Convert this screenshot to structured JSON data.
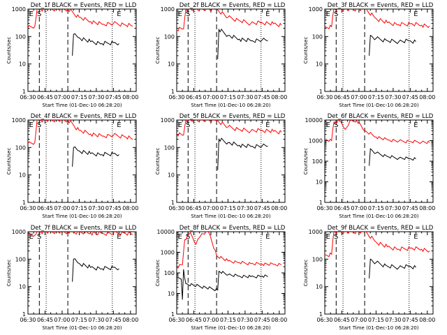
{
  "chart_data": [
    {
      "type": "line",
      "title": "Det_1f BLACK = Events, RED = LLD",
      "xlabel": "Start Time (01-Dec-10 06:28:20)",
      "ylabel": "Counts/sec",
      "x_tick_labels": [
        "06:30",
        "06:45",
        "07:00",
        "07:15",
        "07:30",
        "07:45",
        "08:00"
      ],
      "y_tick_labels": [
        "1",
        "10",
        "100",
        "1000"
      ],
      "ylim": [
        1,
        1000
      ],
      "y_scale": "log",
      "markers": [
        "E",
        "S",
        "E"
      ],
      "series": [
        {
          "color": "#ff0000",
          "points": [
            [
              "06:30",
              220
            ],
            [
              "06:36",
              230
            ],
            [
              "06:38",
              1000
            ],
            [
              "07:05",
              1000
            ],
            [
              "07:15",
              500
            ],
            [
              "07:25",
              350
            ],
            [
              "07:35",
              280
            ],
            [
              "07:45",
              300
            ],
            [
              "07:55",
              270
            ],
            [
              "08:02",
              240
            ]
          ]
        },
        {
          "color": "#000000",
          "points": [
            [
              "07:09",
              20
            ],
            [
              "07:10",
              120
            ],
            [
              "07:15",
              90
            ],
            [
              "07:25",
              65
            ],
            [
              "07:35",
              55
            ],
            [
              "07:45",
              60
            ],
            [
              "07:50",
              55
            ]
          ]
        }
      ]
    },
    {
      "type": "line",
      "title": "Det_2f BLACK = Events, RED = LLD",
      "xlabel": "Start Time (01-Dec-10 06:28:20)",
      "ylabel": "Counts/sec",
      "x_tick_labels": [
        "06:30",
        "06:45",
        "07:00",
        "07:15",
        "07:30",
        "07:45",
        "08:00"
      ],
      "y_tick_labels": [
        "1",
        "10",
        "100",
        "1000"
      ],
      "ylim": [
        1,
        1000
      ],
      "y_scale": "log",
      "markers": [
        "E",
        "S",
        "E"
      ],
      "series": [
        {
          "color": "#ff0000",
          "points": [
            [
              "06:30",
              180
            ],
            [
              "06:36",
              190
            ],
            [
              "06:38",
              1000
            ],
            [
              "07:05",
              1000
            ],
            [
              "07:15",
              500
            ],
            [
              "07:25",
              380
            ],
            [
              "07:35",
              300
            ],
            [
              "07:45",
              320
            ],
            [
              "07:55",
              290
            ],
            [
              "08:02",
              260
            ]
          ]
        },
        {
          "color": "#000000",
          "points": [
            [
              "07:06",
              15
            ],
            [
              "07:07",
              180
            ],
            [
              "07:15",
              110
            ],
            [
              "07:25",
              80
            ],
            [
              "07:35",
              70
            ],
            [
              "07:45",
              75
            ],
            [
              "07:50",
              70
            ]
          ]
        }
      ]
    },
    {
      "type": "line",
      "title": "Det_3f BLACK = Events, RED = LLD",
      "xlabel": "Start Time (01-Dec-10 06:28:20)",
      "ylabel": "Counts/sec",
      "x_tick_labels": [
        "06:30",
        "06:45",
        "07:00",
        "07:15",
        "07:30",
        "07:45",
        "08:00"
      ],
      "y_tick_labels": [
        "1",
        "10",
        "100",
        "1000"
      ],
      "ylim": [
        1,
        1000
      ],
      "y_scale": "log",
      "markers": [
        "E",
        "S",
        "E"
      ],
      "series": [
        {
          "color": "#ff0000",
          "points": [
            [
              "06:30",
              220
            ],
            [
              "06:36",
              230
            ],
            [
              "06:38",
              1000
            ],
            [
              "07:05",
              1000
            ],
            [
              "07:15",
              450
            ],
            [
              "07:25",
              320
            ],
            [
              "07:35",
              270
            ],
            [
              "07:45",
              290
            ],
            [
              "07:55",
              260
            ],
            [
              "08:02",
              240
            ]
          ]
        },
        {
          "color": "#000000",
          "points": [
            [
              "07:09",
              20
            ],
            [
              "07:10",
              110
            ],
            [
              "07:15",
              85
            ],
            [
              "07:25",
              70
            ],
            [
              "07:35",
              65
            ],
            [
              "07:45",
              70
            ],
            [
              "07:50",
              65
            ]
          ]
        }
      ]
    },
    {
      "type": "line",
      "title": "Det_4f BLACK = Events, RED = LLD",
      "xlabel": "Start Time (01-Dec-10 06:28:20)",
      "ylabel": "Counts/sec",
      "x_tick_labels": [
        "06:30",
        "06:45",
        "07:00",
        "07:15",
        "07:30",
        "07:45",
        "08:00"
      ],
      "y_tick_labels": [
        "1",
        "10",
        "100",
        "1000"
      ],
      "ylim": [
        1,
        1000
      ],
      "y_scale": "log",
      "markers": [
        "E",
        "S",
        "E"
      ],
      "series": [
        {
          "color": "#ff0000",
          "points": [
            [
              "06:30",
              140
            ],
            [
              "06:36",
              150
            ],
            [
              "06:38",
              1000
            ],
            [
              "07:05",
              1000
            ],
            [
              "07:15",
              420
            ],
            [
              "07:25",
              310
            ],
            [
              "07:35",
              260
            ],
            [
              "07:45",
              280
            ],
            [
              "07:55",
              250
            ],
            [
              "08:02",
              200
            ]
          ]
        },
        {
          "color": "#000000",
          "points": [
            [
              "07:09",
              20
            ],
            [
              "07:10",
              100
            ],
            [
              "07:15",
              75
            ],
            [
              "07:25",
              60
            ],
            [
              "07:35",
              55
            ],
            [
              "07:45",
              60
            ],
            [
              "07:50",
              55
            ]
          ]
        }
      ]
    },
    {
      "type": "line",
      "title": "Det_5f BLACK = Events, RED = LLD",
      "xlabel": "Start Time (01-Dec-10 06:28:20)",
      "ylabel": "Counts/sec",
      "x_tick_labels": [
        "06:30",
        "06:45",
        "07:00",
        "07:15",
        "07:30",
        "07:45",
        "08:00"
      ],
      "y_tick_labels": [
        "1",
        "10",
        "100",
        "1000"
      ],
      "ylim": [
        1,
        1000
      ],
      "y_scale": "log",
      "markers": [
        "E",
        "S",
        "E"
      ],
      "series": [
        {
          "color": "#ff0000",
          "points": [
            [
              "06:30",
              300
            ],
            [
              "06:36",
              280
            ],
            [
              "06:38",
              1000
            ],
            [
              "07:05",
              1000
            ],
            [
              "07:15",
              560
            ],
            [
              "07:25",
              450
            ],
            [
              "07:35",
              400
            ],
            [
              "07:45",
              420
            ],
            [
              "07:55",
              390
            ],
            [
              "08:02",
              360
            ]
          ]
        },
        {
          "color": "#000000",
          "points": [
            [
              "07:06",
              15
            ],
            [
              "07:07",
              200
            ],
            [
              "07:15",
              150
            ],
            [
              "07:25",
              120
            ],
            [
              "07:35",
              110
            ],
            [
              "07:45",
              115
            ],
            [
              "07:50",
              110
            ]
          ]
        }
      ]
    },
    {
      "type": "line",
      "title": "Det_6f BLACK = Events, RED = LLD",
      "xlabel": "Start Time (01-Dec-10 06:28:20)",
      "ylabel": "Counts/sec",
      "x_tick_labels": [
        "06:30",
        "06:45",
        "07:00",
        "07:15",
        "07:30",
        "07:45",
        "08:00"
      ],
      "y_tick_labels": [
        "1",
        "10",
        "100",
        "1000",
        "10000"
      ],
      "ylim": [
        1,
        10000
      ],
      "y_scale": "log",
      "markers": [
        "E",
        "S",
        "E"
      ],
      "series": [
        {
          "color": "#ff0000",
          "points": [
            [
              "06:30",
              1200
            ],
            [
              "06:36",
              1000
            ],
            [
              "06:38",
              8000
            ],
            [
              "06:43",
              9000
            ],
            [
              "06:48",
              3500
            ],
            [
              "06:52",
              9000
            ],
            [
              "06:58",
              9500
            ],
            [
              "07:05",
              3000
            ],
            [
              "07:15",
              1500
            ],
            [
              "07:25",
              1100
            ],
            [
              "07:35",
              950
            ],
            [
              "07:45",
              900
            ],
            [
              "07:55",
              850
            ],
            [
              "08:02",
              800
            ]
          ]
        },
        {
          "color": "#000000",
          "points": [
            [
              "07:09",
              60
            ],
            [
              "07:10",
              400
            ],
            [
              "07:15",
              250
            ],
            [
              "07:25",
              170
            ],
            [
              "07:35",
              140
            ],
            [
              "07:45",
              135
            ],
            [
              "07:50",
              130
            ]
          ]
        }
      ]
    },
    {
      "type": "line",
      "title": "Det_7f BLACK = Events, RED = LLD",
      "xlabel": "Start Time (01-Dec-10 06:28:20)",
      "ylabel": "Counts/sec",
      "x_tick_labels": [
        "06:30",
        "06:45",
        "07:00",
        "07:15",
        "07:30",
        "07:45",
        "08:00"
      ],
      "y_tick_labels": [
        "1",
        "10",
        "100",
        "1000"
      ],
      "ylim": [
        1,
        1000
      ],
      "y_scale": "log",
      "markers": [
        "E",
        "S",
        "E"
      ],
      "series": [
        {
          "color": "#ff0000",
          "points": [
            [
              "06:30",
              800
            ],
            [
              "06:36",
              750
            ],
            [
              "06:38",
              1000
            ],
            [
              "07:05",
              1000
            ],
            [
              "07:15",
              950
            ],
            [
              "07:25",
              900
            ],
            [
              "07:35",
              850
            ],
            [
              "07:45",
              900
            ],
            [
              "07:55",
              880
            ],
            [
              "08:02",
              800
            ]
          ]
        },
        {
          "color": "#000000",
          "points": [
            [
              "07:09",
              15
            ],
            [
              "07:10",
              100
            ],
            [
              "07:15",
              70
            ],
            [
              "07:25",
              50
            ],
            [
              "07:35",
              45
            ],
            [
              "07:45",
              50
            ],
            [
              "07:50",
              45
            ]
          ]
        }
      ]
    },
    {
      "type": "line",
      "title": "Det_8f BLACK = Events, RED = LLD",
      "xlabel": "Start Time (01-Dec-10 06:28:20)",
      "ylabel": "Counts/sec",
      "x_tick_labels": [
        "06:30",
        "06:45",
        "07:00",
        "07:15",
        "07:30",
        "07:45",
        "08:00"
      ],
      "y_tick_labels": [
        "1",
        "10",
        "100",
        "1000",
        "10000"
      ],
      "ylim": [
        1,
        10000
      ],
      "y_scale": "log",
      "markers": [
        "E",
        "S",
        "E"
      ],
      "series": [
        {
          "color": "#ff0000",
          "points": [
            [
              "06:30",
              180
            ],
            [
              "06:35",
              250
            ],
            [
              "06:37",
              4000
            ],
            [
              "06:42",
              9000
            ],
            [
              "06:47",
              2500
            ],
            [
              "06:52",
              8000
            ],
            [
              "06:58",
              9500
            ],
            [
              "07:05",
              700
            ],
            [
              "07:15",
              380
            ],
            [
              "07:25",
              320
            ],
            [
              "07:35",
              280
            ],
            [
              "07:45",
              270
            ],
            [
              "07:55",
              260
            ],
            [
              "08:02",
              250
            ]
          ]
        },
        {
          "color": "#000000",
          "points": [
            [
              "06:30",
              60
            ],
            [
              "06:34",
              50
            ],
            [
              "06:35",
              5
            ],
            [
              "06:36",
              150
            ],
            [
              "06:38",
              30
            ],
            [
              "07:06",
              15
            ],
            [
              "07:07",
              120
            ],
            [
              "07:15",
              80
            ],
            [
              "07:25",
              70
            ],
            [
              "07:35",
              65
            ],
            [
              "07:45",
              70
            ],
            [
              "07:50",
              65
            ]
          ]
        }
      ]
    },
    {
      "type": "line",
      "title": "Det_9f BLACK = Events, RED = LLD",
      "xlabel": "Start Time (01-Dec-10 06:28:20)",
      "ylabel": "Counts/sec",
      "x_tick_labels": [
        "06:30",
        "06:45",
        "07:00",
        "07:15",
        "07:30",
        "07:45",
        "08:00"
      ],
      "y_tick_labels": [
        "1",
        "10",
        "100",
        "1000"
      ],
      "ylim": [
        1,
        1000
      ],
      "y_scale": "log",
      "markers": [
        "E",
        "S",
        "E"
      ],
      "series": [
        {
          "color": "#ff0000",
          "points": [
            [
              "06:30",
              140
            ],
            [
              "06:36",
              150
            ],
            [
              "06:38",
              1000
            ],
            [
              "07:05",
              1000
            ],
            [
              "07:15",
              420
            ],
            [
              "07:25",
              280
            ],
            [
              "07:35",
              230
            ],
            [
              "07:45",
              250
            ],
            [
              "07:55",
              230
            ],
            [
              "08:02",
              200
            ]
          ]
        },
        {
          "color": "#000000",
          "points": [
            [
              "07:09",
              20
            ],
            [
              "07:10",
              100
            ],
            [
              "07:15",
              75
            ],
            [
              "07:25",
              55
            ],
            [
              "07:35",
              50
            ],
            [
              "07:45",
              55
            ],
            [
              "07:50",
              50
            ]
          ]
        }
      ]
    }
  ]
}
